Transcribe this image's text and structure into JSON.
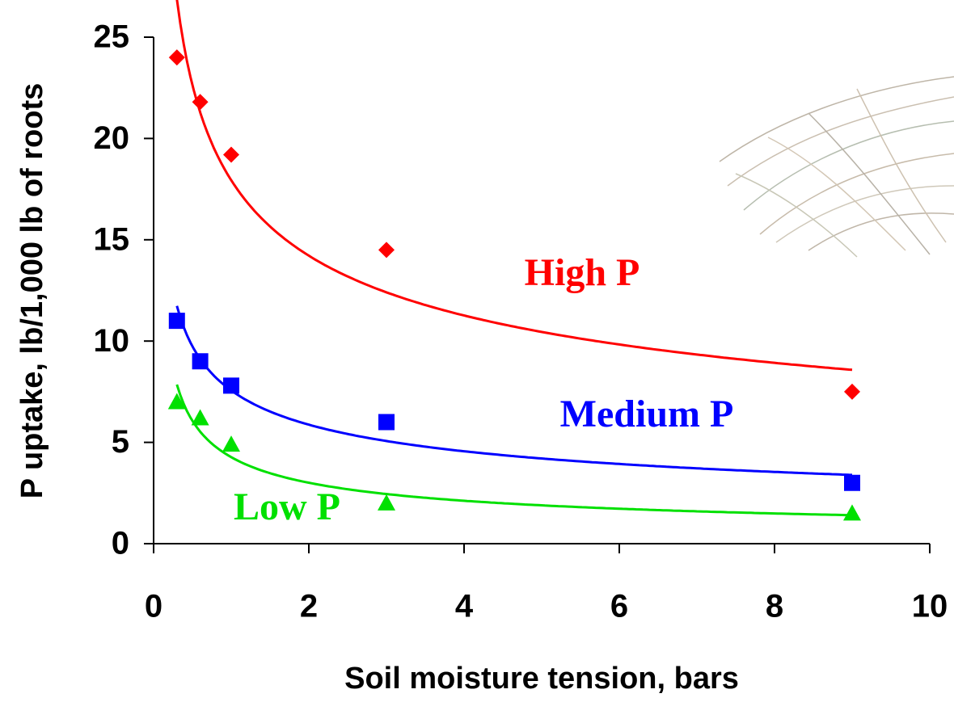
{
  "chart_data": {
    "type": "scatter",
    "x_label": "Soil moisture tension, bars",
    "y_label": "P uptake, lb/1,000 lb of roots",
    "x": [
      0.3,
      0.6,
      1,
      3,
      9
    ],
    "series": [
      {
        "name": "High P",
        "color": "#ff0000",
        "marker": "diamond",
        "values": [
          24,
          21.8,
          19.2,
          14.5,
          7.5
        ]
      },
      {
        "name": "Medium P",
        "color": "#0000ff",
        "marker": "square",
        "values": [
          11,
          9,
          7.8,
          6,
          3
        ]
      },
      {
        "name": "Low P",
        "color": "#00e000",
        "marker": "triangle",
        "values": [
          7,
          6.2,
          4.9,
          2,
          1.5
        ]
      }
    ],
    "trendline": "power",
    "xlim": [
      0,
      10
    ],
    "xticks": [
      0,
      2,
      4,
      6,
      8,
      10
    ],
    "ylim": [
      0,
      25
    ],
    "yticks": [
      0,
      5,
      10,
      15,
      20,
      25
    ],
    "grid": false
  }
}
